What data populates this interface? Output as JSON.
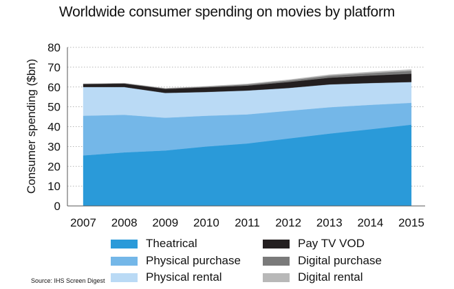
{
  "chart_data": {
    "type": "area",
    "stacked": true,
    "title": "Worldwide consumer spending on movies by platform",
    "ylabel": "Consumer spending  ($bn)",
    "xlabel": "",
    "categories": [
      "2007",
      "2008",
      "2009",
      "2010",
      "2011",
      "2012",
      "2013",
      "2014",
      "2015"
    ],
    "ylim": [
      0,
      80
    ],
    "yticks": [
      0,
      10,
      20,
      30,
      40,
      50,
      60,
      70,
      80
    ],
    "grid": "horizontal dotted",
    "legend_position": "bottom",
    "series": [
      {
        "name": "Theatrical",
        "color": "#2a9ad9",
        "values": [
          25.5,
          27,
          28,
          30,
          31.5,
          34,
          36.5,
          38.7,
          41
        ]
      },
      {
        "name": "Physical purchase",
        "color": "#74b7e8",
        "values": [
          20,
          19,
          16.5,
          15.5,
          14.7,
          14,
          13.3,
          12.3,
          11
        ]
      },
      {
        "name": "Physical rental",
        "color": "#badaf5",
        "values": [
          14.5,
          14,
          12.5,
          12,
          12,
          11.5,
          11.5,
          11,
          10.5
        ]
      },
      {
        "name": "Pay TV VOD",
        "color": "#231f20",
        "values": [
          1.5,
          1.7,
          2.0,
          2.3,
          2.5,
          3.0,
          3.4,
          3.8,
          4.2
        ]
      },
      {
        "name": "Digital purchase",
        "color": "#7a7a7a",
        "values": [
          0.1,
          0.2,
          0.3,
          0.4,
          0.6,
          0.8,
          1.0,
          1.2,
          1.5
        ]
      },
      {
        "name": "Digital rental",
        "color": "#b8b8b8",
        "values": [
          0.0,
          0.1,
          0.1,
          0.2,
          0.3,
          0.4,
          0.5,
          0.6,
          0.7
        ]
      }
    ]
  },
  "source": "Source: IHS Screen Digest"
}
